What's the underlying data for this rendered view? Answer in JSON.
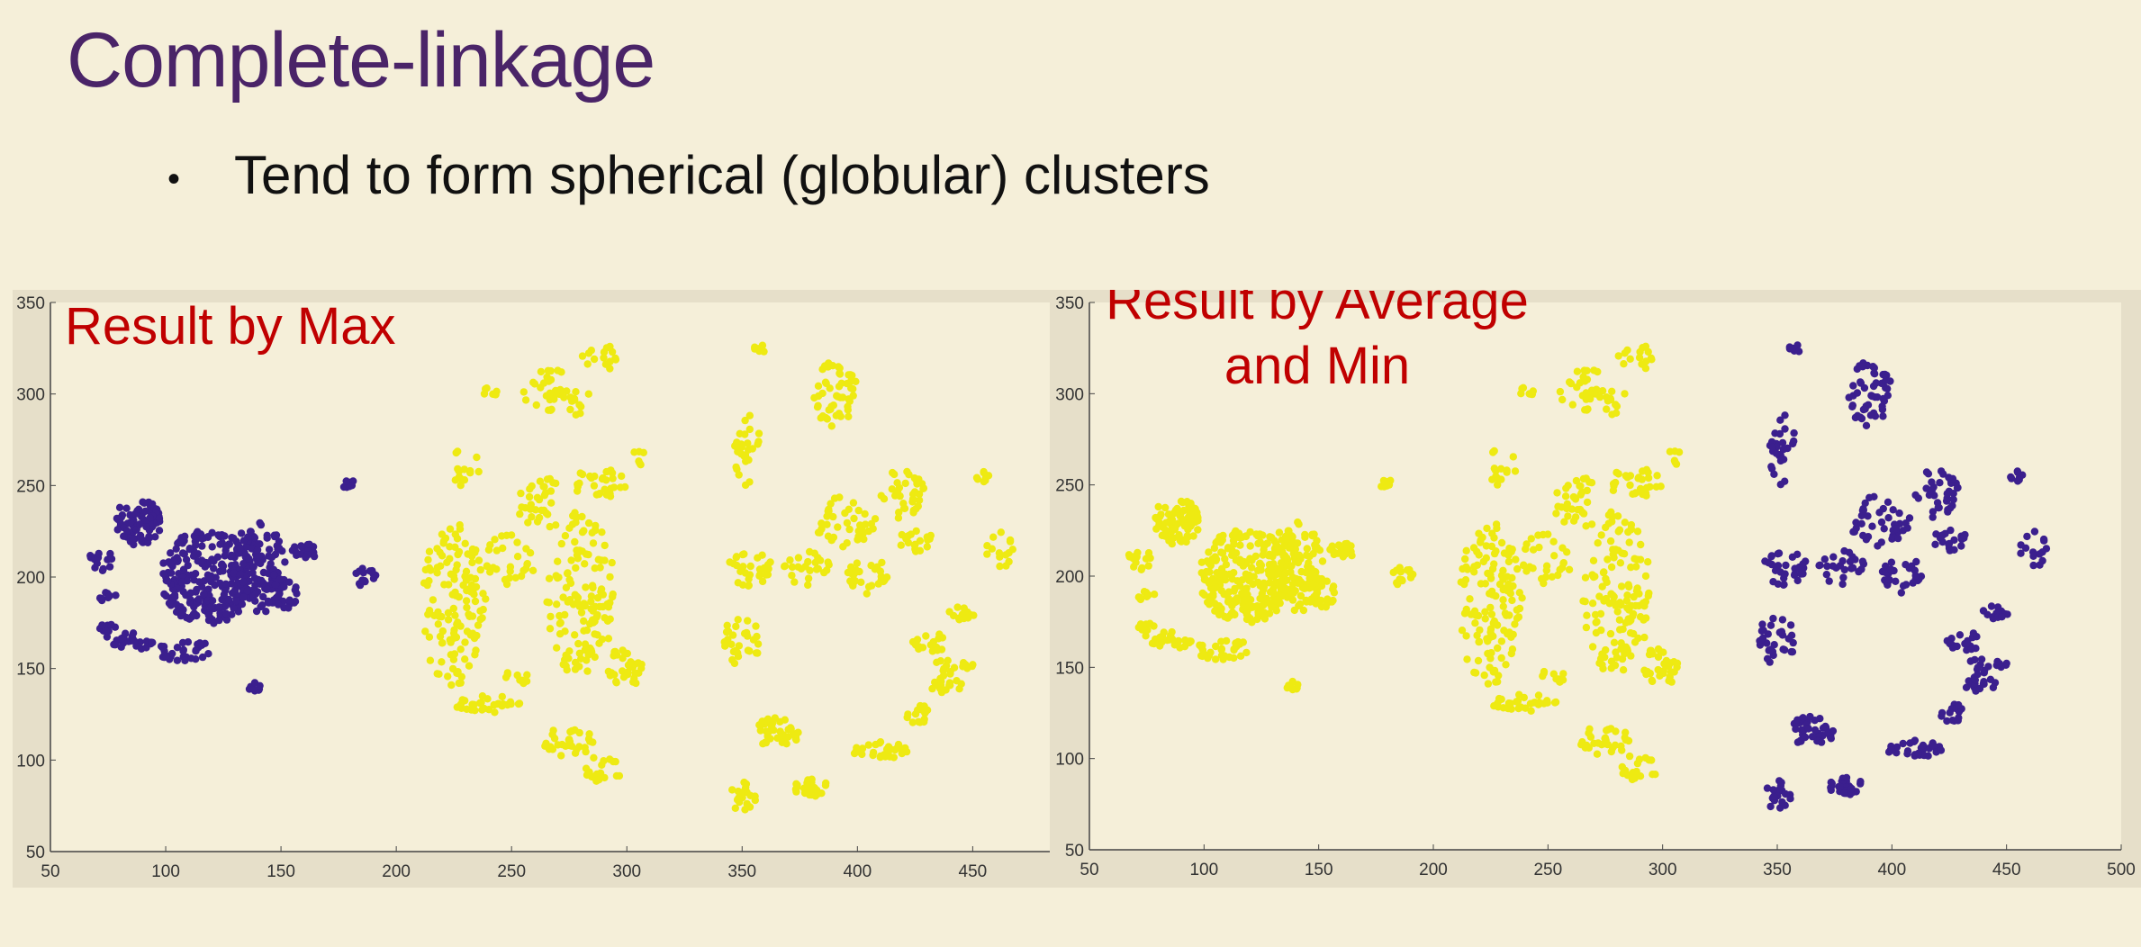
{
  "slide": {
    "title": "Complete-linkage",
    "bullet": "Tend to form spherical (globular) clusters"
  },
  "colors": {
    "background": "#f5efd9",
    "title": "#4a2468",
    "annotation": "#c00000",
    "cluster_purple": "#3b1f8e",
    "cluster_yellow": "#eeea12"
  },
  "chart_data": [
    {
      "type": "scatter",
      "annotation": "Result by Max",
      "title": "",
      "xlabel": "",
      "ylabel": "",
      "xlim": [
        50,
        485
      ],
      "ylim": [
        50,
        350
      ],
      "xticks": [
        50,
        100,
        150,
        200,
        250,
        300,
        350,
        400,
        450
      ],
      "yticks": [
        50,
        100,
        150,
        200,
        250,
        300,
        350
      ],
      "grid": false,
      "series": [
        {
          "color": "#3b1f8e",
          "clusters": [
            [
              72,
              210,
              5,
              7,
              14
            ],
            [
              75,
              190,
              4,
              4,
              10
            ],
            [
              75,
              170,
              4,
              5,
              10
            ],
            [
              85,
              165,
              10,
              5,
              25
            ],
            [
              108,
              160,
              12,
              6,
              30
            ],
            [
              88,
              230,
              10,
              13,
              80
            ],
            [
              118,
              200,
              20,
              26,
              250
            ],
            [
              140,
              205,
              12,
              25,
              120
            ],
            [
              150,
              190,
              8,
              10,
              30
            ],
            [
              160,
              215,
              6,
              6,
              20
            ],
            [
              138,
              140,
              3,
              3,
              8
            ],
            [
              180,
              250,
              3,
              3,
              8
            ],
            [
              186,
              200,
              8,
              5,
              15
            ]
          ]
        },
        {
          "color": "#eeea12",
          "clusters": [
            [
              225,
              185,
              14,
              45,
              130
            ],
            [
              250,
              210,
              12,
              15,
              30
            ],
            [
              270,
              300,
              15,
              14,
              40
            ],
            [
              265,
              240,
              14,
              14,
              35
            ],
            [
              280,
              190,
              15,
              45,
              130
            ],
            [
              288,
              250,
              12,
              10,
              30
            ],
            [
              288,
              320,
              8,
              8,
              15
            ],
            [
              298,
              150,
              10,
              10,
              30
            ],
            [
              240,
              130,
              14,
              6,
              30
            ],
            [
              230,
              260,
              6,
              12,
              15
            ],
            [
              252,
              145,
              6,
              4,
              10
            ],
            [
              275,
              110,
              12,
              8,
              30
            ],
            [
              290,
              95,
              8,
              8,
              20
            ],
            [
              240,
              300,
              4,
              4,
              8
            ],
            [
              305,
              265,
              4,
              4,
              6
            ],
            [
              352,
              270,
              6,
              20,
              30
            ],
            [
              353,
              205,
              10,
              10,
              30
            ],
            [
              350,
              165,
              8,
              15,
              30
            ],
            [
              350,
              80,
              6,
              8,
              20
            ],
            [
              365,
              115,
              10,
              8,
              40
            ],
            [
              380,
              85,
              8,
              5,
              30
            ],
            [
              378,
              205,
              10,
              10,
              25
            ],
            [
              390,
              300,
              10,
              18,
              50
            ],
            [
              395,
              230,
              14,
              14,
              40
            ],
            [
              405,
              200,
              10,
              10,
              30
            ],
            [
              410,
              105,
              12,
              5,
              30
            ],
            [
              420,
              245,
              10,
              14,
              35
            ],
            [
              425,
              220,
              8,
              6,
              20
            ],
            [
              432,
              165,
              8,
              6,
              20
            ],
            [
              438,
              145,
              8,
              10,
              25
            ],
            [
              445,
              180,
              6,
              4,
              15
            ],
            [
              455,
              255,
              4,
              3,
              8
            ],
            [
              462,
              215,
              6,
              10,
              15
            ],
            [
              358,
              325,
              3,
              3,
              6
            ],
            [
              448,
              152,
              3,
              3,
              6
            ],
            [
              425,
              125,
              6,
              6,
              15
            ]
          ]
        }
      ]
    },
    {
      "type": "scatter",
      "annotation": "Result by Average and Min",
      "title": "",
      "xlabel": "",
      "ylabel": "",
      "xlim": [
        50,
        500
      ],
      "ylim": [
        50,
        350
      ],
      "xticks": [
        50,
        100,
        150,
        200,
        250,
        300,
        350,
        400,
        450,
        500
      ],
      "yticks": [
        50,
        100,
        150,
        200,
        250,
        300,
        350
      ],
      "grid": false,
      "series": [
        {
          "color": "#eeea12",
          "clusters": [
            [
              72,
              210,
              5,
              7,
              14
            ],
            [
              75,
              190,
              4,
              4,
              10
            ],
            [
              75,
              170,
              4,
              5,
              10
            ],
            [
              85,
              165,
              10,
              5,
              25
            ],
            [
              108,
              160,
              12,
              6,
              30
            ],
            [
              88,
              230,
              10,
              13,
              80
            ],
            [
              118,
              200,
              20,
              26,
              250
            ],
            [
              140,
              205,
              12,
              25,
              120
            ],
            [
              150,
              190,
              8,
              10,
              30
            ],
            [
              160,
              215,
              6,
              6,
              20
            ],
            [
              138,
              140,
              3,
              3,
              8
            ],
            [
              180,
              250,
              3,
              3,
              8
            ],
            [
              186,
              200,
              8,
              5,
              15
            ],
            [
              225,
              185,
              14,
              45,
              130
            ],
            [
              250,
              210,
              12,
              15,
              30
            ],
            [
              270,
              300,
              15,
              14,
              40
            ],
            [
              265,
              240,
              14,
              14,
              35
            ],
            [
              280,
              190,
              15,
              45,
              130
            ],
            [
              288,
              250,
              12,
              10,
              30
            ],
            [
              288,
              320,
              8,
              8,
              15
            ],
            [
              298,
              150,
              10,
              10,
              30
            ],
            [
              240,
              130,
              14,
              6,
              30
            ],
            [
              230,
              260,
              6,
              12,
              15
            ],
            [
              252,
              145,
              6,
              4,
              10
            ],
            [
              275,
              110,
              12,
              8,
              30
            ],
            [
              290,
              95,
              8,
              8,
              20
            ],
            [
              240,
              300,
              4,
              4,
              8
            ],
            [
              305,
              265,
              4,
              4,
              6
            ]
          ]
        },
        {
          "color": "#3b1f8e",
          "clusters": [
            [
              352,
              270,
              6,
              20,
              30
            ],
            [
              353,
              205,
              10,
              10,
              30
            ],
            [
              350,
              165,
              8,
              15,
              30
            ],
            [
              350,
              80,
              6,
              8,
              20
            ],
            [
              365,
              115,
              10,
              8,
              40
            ],
            [
              380,
              85,
              8,
              5,
              30
            ],
            [
              378,
              205,
              10,
              10,
              25
            ],
            [
              390,
              300,
              10,
              18,
              50
            ],
            [
              395,
              230,
              14,
              14,
              40
            ],
            [
              405,
              200,
              10,
              10,
              30
            ],
            [
              410,
              105,
              12,
              5,
              30
            ],
            [
              420,
              245,
              10,
              14,
              35
            ],
            [
              425,
              220,
              8,
              6,
              20
            ],
            [
              432,
              165,
              8,
              6,
              20
            ],
            [
              438,
              145,
              8,
              10,
              25
            ],
            [
              445,
              180,
              6,
              4,
              15
            ],
            [
              455,
              255,
              4,
              3,
              8
            ],
            [
              462,
              215,
              6,
              10,
              15
            ],
            [
              358,
              325,
              3,
              3,
              6
            ],
            [
              448,
              152,
              3,
              3,
              6
            ],
            [
              425,
              125,
              6,
              6,
              15
            ]
          ]
        }
      ]
    }
  ]
}
